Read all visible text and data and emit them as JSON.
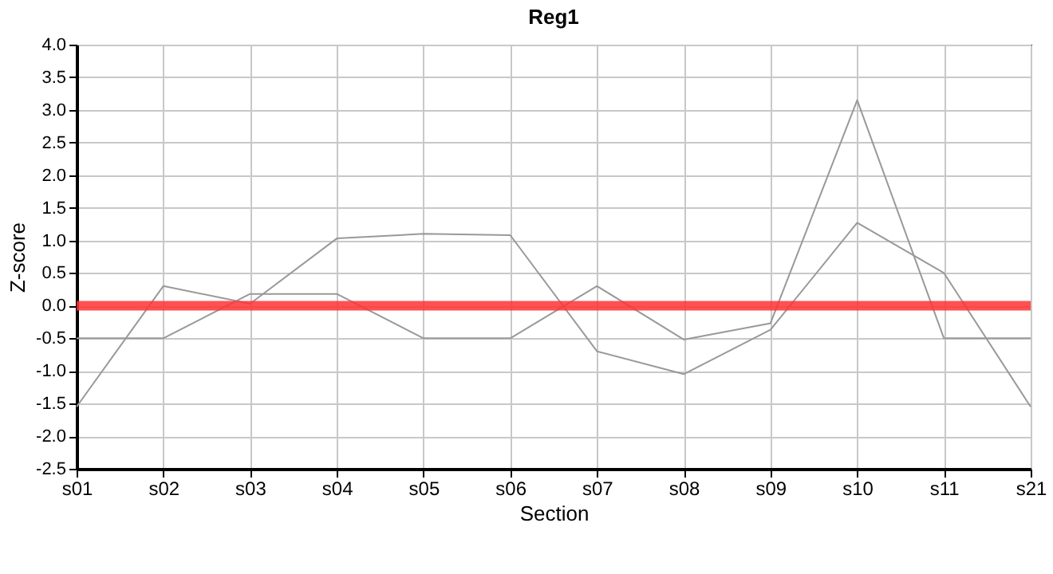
{
  "chart_data": {
    "type": "line",
    "title": "Reg1",
    "xlabel": "Section",
    "ylabel": "Z-score",
    "categories": [
      "s01",
      "s02",
      "s03",
      "s04",
      "s05",
      "s06",
      "s07",
      "s08",
      "s09",
      "s10",
      "s11",
      "s21"
    ],
    "series": [
      {
        "color": "#999999",
        "values": [
          -1.55,
          0.3,
          0.03,
          1.03,
          1.1,
          1.08,
          -0.7,
          -1.05,
          -0.37,
          1.27,
          0.5,
          -1.55
        ]
      },
      {
        "color": "#999999",
        "values": [
          -0.5,
          -0.5,
          0.18,
          0.18,
          -0.5,
          -0.5,
          0.3,
          -0.52,
          -0.27,
          3.15,
          -0.5,
          -0.5
        ]
      }
    ],
    "ylim": [
      -2.5,
      4.0
    ],
    "yticks": [
      {
        "value": -2.5,
        "label": "-2.5"
      },
      {
        "value": -2,
        "label": "-2.0"
      },
      {
        "value": -1.5,
        "label": "-1.5"
      },
      {
        "value": -1,
        "label": "-1.0"
      },
      {
        "value": -0.5,
        "label": "-0.5"
      },
      {
        "value": 0,
        "label": "0.0"
      },
      {
        "value": 0.5,
        "label": "0.5"
      },
      {
        "value": 1,
        "label": "1.0"
      },
      {
        "value": 1.5,
        "label": "1.5"
      },
      {
        "value": 2,
        "label": "2.0"
      },
      {
        "value": 2.5,
        "label": "2.5"
      },
      {
        "value": 3,
        "label": "3.0"
      },
      {
        "value": 3.5,
        "label": "3.5"
      },
      {
        "value": 4,
        "label": "4.0"
      }
    ],
    "ref_lines": [
      {
        "axis": "y",
        "value": 0,
        "color": "#ff3333"
      }
    ],
    "grid": true,
    "marker": "none",
    "line_style": "solid"
  }
}
